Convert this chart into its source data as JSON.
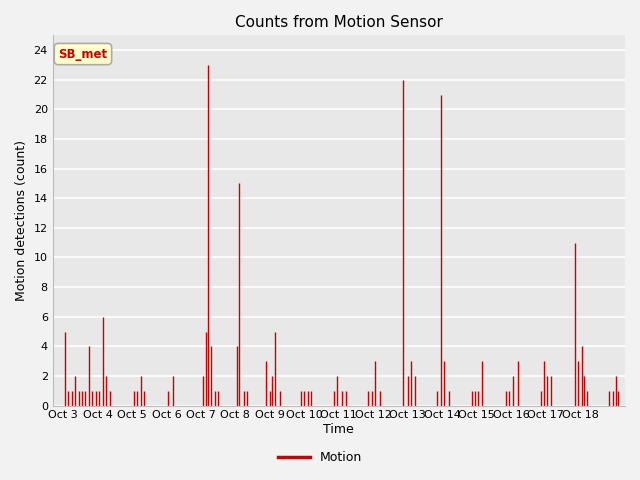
{
  "title": "Counts from Motion Sensor",
  "ylabel": "Motion detections (count)",
  "xlabel": "Time",
  "legend_label": "Motion",
  "legend_color": "#cc0000",
  "bar_color": "#cc0000",
  "background_color": "#e8e8e8",
  "fig_bg_color": "#f2f2f2",
  "annotation_text": "SB_met",
  "annotation_bg": "#ffffcc",
  "annotation_border": "#aaaaaa",
  "annotation_text_color": "#cc0000",
  "ylim": [
    0,
    25
  ],
  "yticks": [
    0,
    2,
    4,
    6,
    8,
    10,
    12,
    14,
    16,
    18,
    20,
    22,
    24
  ],
  "xlim_min": 0,
  "xlim_max": 15,
  "data_points": [
    [
      0.05,
      5
    ],
    [
      0.15,
      1
    ],
    [
      0.25,
      1
    ],
    [
      0.35,
      2
    ],
    [
      0.45,
      1
    ],
    [
      0.55,
      1
    ],
    [
      0.65,
      1
    ],
    [
      0.75,
      4
    ],
    [
      0.85,
      1
    ],
    [
      0.95,
      1
    ],
    [
      1.05,
      1
    ],
    [
      1.15,
      6
    ],
    [
      1.25,
      2
    ],
    [
      1.35,
      1
    ],
    [
      2.05,
      1
    ],
    [
      2.15,
      1
    ],
    [
      2.25,
      2
    ],
    [
      2.35,
      1
    ],
    [
      3.05,
      1
    ],
    [
      3.2,
      2
    ],
    [
      4.05,
      2
    ],
    [
      4.15,
      5
    ],
    [
      4.2,
      23
    ],
    [
      4.3,
      4
    ],
    [
      4.4,
      1
    ],
    [
      4.5,
      1
    ],
    [
      5.05,
      4
    ],
    [
      5.1,
      15
    ],
    [
      5.25,
      1
    ],
    [
      5.35,
      1
    ],
    [
      5.9,
      3
    ],
    [
      6.0,
      1
    ],
    [
      6.05,
      2
    ],
    [
      6.15,
      5
    ],
    [
      6.3,
      1
    ],
    [
      6.9,
      1
    ],
    [
      7.0,
      1
    ],
    [
      7.1,
      1
    ],
    [
      7.2,
      1
    ],
    [
      7.85,
      1
    ],
    [
      7.95,
      2
    ],
    [
      8.1,
      1
    ],
    [
      8.2,
      1
    ],
    [
      8.85,
      1
    ],
    [
      8.95,
      1
    ],
    [
      9.05,
      3
    ],
    [
      9.2,
      1
    ],
    [
      9.85,
      22
    ],
    [
      10.0,
      2
    ],
    [
      10.1,
      3
    ],
    [
      10.2,
      2
    ],
    [
      10.85,
      1
    ],
    [
      10.95,
      21
    ],
    [
      11.05,
      3
    ],
    [
      11.2,
      1
    ],
    [
      11.85,
      1
    ],
    [
      11.95,
      1
    ],
    [
      12.05,
      1
    ],
    [
      12.15,
      3
    ],
    [
      12.85,
      1
    ],
    [
      12.95,
      1
    ],
    [
      13.05,
      2
    ],
    [
      13.2,
      3
    ],
    [
      13.85,
      1
    ],
    [
      13.95,
      3
    ],
    [
      14.05,
      2
    ],
    [
      14.15,
      2
    ],
    [
      14.85,
      11
    ],
    [
      14.95,
      3
    ],
    [
      15.05,
      4
    ],
    [
      15.1,
      2
    ],
    [
      15.2,
      1
    ],
    [
      15.85,
      1
    ],
    [
      15.95,
      1
    ],
    [
      16.05,
      2
    ],
    [
      16.1,
      1
    ]
  ],
  "xtick_positions": [
    0,
    1,
    2,
    3,
    4,
    5,
    6,
    7,
    8,
    9,
    10,
    11,
    12,
    13,
    14,
    15,
    16
  ],
  "xtick_labels": [
    "Oct 3",
    "Oct 4",
    "Oct 5",
    "Oct 6",
    "Oct 7",
    "Oct 8",
    "Oct 9",
    "Oct 10",
    "Oct 11",
    "Oct 12",
    "Oct 13",
    "Oct 14",
    "Oct 15",
    "Oct 16",
    "Oct 17",
    "Oct 18",
    ""
  ]
}
